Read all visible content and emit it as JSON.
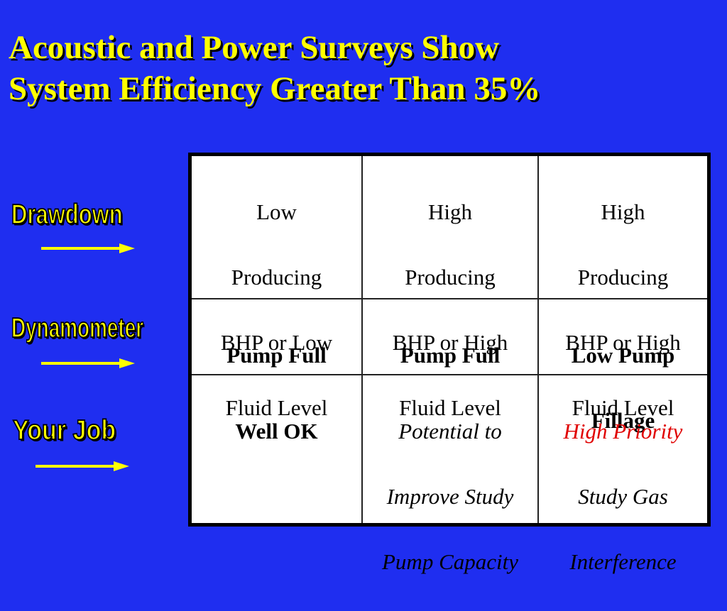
{
  "title": {
    "line1": "Acoustic and Power Surveys Show",
    "line2": "System Efficiency Greater Than 35%"
  },
  "side_labels": {
    "drawdown": "Drawdown",
    "dynamometer": "Dynamometer",
    "your_job": "Your Job"
  },
  "colors": {
    "background": "#1f2ef0",
    "title": "#ffff00",
    "label": "#ffff00",
    "arrow": "#ffff00",
    "highlight": "#e00000"
  },
  "matrix": {
    "row_drawdown": [
      {
        "lines": [
          "Low",
          "Producing",
          "BHP or Low",
          "Fluid Level"
        ]
      },
      {
        "lines": [
          "High",
          "Producing",
          "BHP or High",
          "Fluid Level"
        ]
      },
      {
        "lines": [
          "High",
          "Producing",
          "BHP or High",
          "Fluid Level"
        ]
      }
    ],
    "row_dynamometer": [
      {
        "lines": [
          "Pump Full"
        ]
      },
      {
        "lines": [
          "Pump Full"
        ]
      },
      {
        "lines": [
          "Low Pump",
          "Fillage"
        ]
      }
    ],
    "row_your_job": [
      {
        "lines": [
          "Well OK"
        ]
      },
      {
        "lines": [
          "Potential to",
          "Improve Study",
          "Pump Capacity"
        ]
      },
      {
        "lines": [
          "High Priority",
          "Study Gas",
          "Interference"
        ]
      }
    ]
  }
}
